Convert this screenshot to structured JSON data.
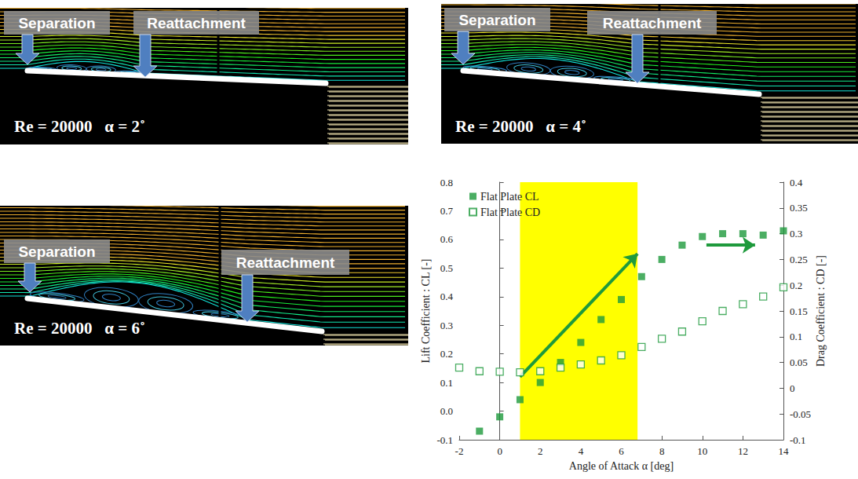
{
  "panels": [
    {
      "labels": [
        "Separation",
        "Reattachment"
      ],
      "caption": "Re = 20000   α = 2˚"
    },
    {
      "labels": [
        "Separation",
        "Reattachment"
      ],
      "caption": "Re = 20000   α = 4˚"
    },
    {
      "labels": [
        "Separation",
        "Reattachment"
      ],
      "caption": "Re = 20000   α = 6˚"
    }
  ],
  "chart_data": {
    "type": "scatter",
    "xlabel": "Angle of Attack α [deg]",
    "ylabel": "Lift Coefficient : CL [-]",
    "y2label": "Drag Coefficient : CD [-]",
    "x": [
      -2,
      -1,
      0,
      1,
      2,
      3,
      4,
      5,
      6,
      7,
      8,
      9,
      10,
      11,
      12,
      13,
      14
    ],
    "series": [
      {
        "name": "Flat Plate CL",
        "color": "#1e9a3c",
        "marker": "square",
        "values": [
          null,
          -0.07,
          -0.02,
          0.04,
          0.1,
          0.17,
          0.24,
          0.32,
          0.39,
          0.47,
          0.53,
          0.58,
          0.61,
          0.62,
          0.62,
          0.615,
          0.63
        ]
      },
      {
        "name": "Flat Plate CD",
        "color": "#1e9a3c",
        "marker": "open_square",
        "axis": "y2",
        "values": [
          0.04,
          0.033,
          0.032,
          0.031,
          0.033,
          0.04,
          0.046,
          0.054,
          0.064,
          0.08,
          0.096,
          0.11,
          0.13,
          0.15,
          0.163,
          0.178,
          0.196
        ]
      }
    ],
    "xlim": [
      -2,
      14
    ],
    "xticks": [
      -2,
      0,
      2,
      4,
      6,
      8,
      10,
      12,
      14
    ],
    "ylim": [
      -0.1,
      0.8
    ],
    "yticks": [
      -0.1,
      {
        "value": 0,
        "label": "0.0"
      },
      0.1,
      0.2,
      0.3,
      0.4,
      0.5,
      0.6,
      0.7,
      0.8
    ],
    "y2lim": [
      -0.1,
      0.4
    ],
    "y2ticks": [
      -0.1,
      -0.05,
      0,
      0.05,
      0.1,
      0.15,
      0.2,
      0.25,
      0.3,
      0.35,
      0.4
    ],
    "grid": false,
    "legend": "upper left",
    "highlight_x": [
      1,
      6.8
    ],
    "highlight_color": "#ffff00",
    "arrows": [
      [
        [
          1,
          0.12
        ],
        [
          6.8,
          0.55
        ]
      ],
      [
        [
          10.2,
          0.58
        ],
        [
          12.6,
          0.58
        ]
      ]
    ]
  }
}
